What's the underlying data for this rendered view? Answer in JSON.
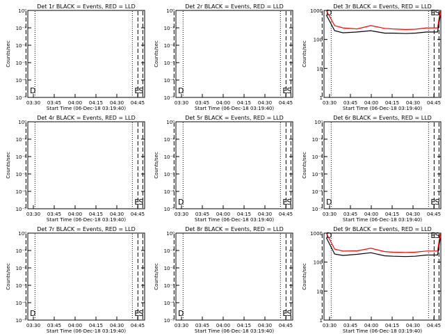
{
  "colors": {
    "events": "#000000",
    "lld": "#ff0000",
    "axis": "#000000"
  },
  "chart_data": [
    {
      "type": "line",
      "title": "Det 1r BLACK = Events, RED = LLD",
      "xlabel": "Start Time (06-Dec-18 03:19:40)",
      "ylabel": "Counts/sec",
      "x_ticks": [
        "03:30",
        "03:45",
        "04:00",
        "04:15",
        "04:30",
        "04:45"
      ],
      "y_scale": "log",
      "y_ticks": [
        "10⁰",
        "10⁻¹",
        "10⁻²",
        "10⁻³",
        "10⁻⁴",
        "10⁻⁵"
      ],
      "ylim": [
        "10⁰",
        "10⁻⁵"
      ],
      "markers": [
        "D",
        "E",
        "S"
      ],
      "series": []
    },
    {
      "type": "line",
      "title": "Det 2r BLACK = Events, RED = LLD",
      "xlabel": "Start Time (06-Dec-18 03:19:40)",
      "ylabel": "Counts/sec",
      "x_ticks": [
        "03:30",
        "03:45",
        "04:00",
        "04:15",
        "04:30",
        "04:45"
      ],
      "y_scale": "log",
      "y_ticks": [
        "10⁰",
        "10⁻¹",
        "10⁻²",
        "10⁻³",
        "10⁻⁴",
        "10⁻⁵"
      ],
      "ylim": [
        "10⁰",
        "10⁻⁵"
      ],
      "markers": [
        "D",
        "E",
        "S"
      ],
      "series": []
    },
    {
      "type": "line",
      "title": "Det 3r BLACK = Events, RED = LLD",
      "xlabel": "Start Time (06-Dec-18 03:19:40)",
      "ylabel": "Counts/sec",
      "x_ticks": [
        "03:30",
        "03:45",
        "04:00",
        "04:15",
        "04:30",
        "04:45"
      ],
      "y_scale": "log",
      "y_ticks": [
        "1000",
        "100",
        "10",
        "1"
      ],
      "ylim": [
        1,
        1000
      ],
      "markers": [
        "D",
        "E",
        "S"
      ],
      "series": [
        {
          "color": "black",
          "x_min": [
            8,
            14,
            20,
            30,
            40,
            50,
            56,
            65,
            72,
            80,
            88,
            90
          ],
          "y": [
            700,
            200,
            170,
            180,
            200,
            165,
            165,
            160,
            165,
            180,
            180,
            700
          ]
        },
        {
          "color": "red",
          "x_min": [
            8,
            14,
            20,
            30,
            40,
            50,
            56,
            65,
            72,
            80,
            88,
            90
          ],
          "y": [
            1000,
            300,
            250,
            230,
            300,
            240,
            230,
            220,
            225,
            250,
            250,
            1000
          ]
        }
      ]
    },
    {
      "type": "line",
      "title": "Det 4r BLACK = Events, RED = LLD",
      "xlabel": "Start Time (06-Dec-18 03:19:40)",
      "ylabel": "Counts/sec",
      "x_ticks": [
        "03:30",
        "03:45",
        "04:00",
        "04:15",
        "04:30",
        "04:45"
      ],
      "y_scale": "log",
      "y_ticks": [
        "10⁰",
        "10⁻¹",
        "10⁻²",
        "10⁻³",
        "10⁻⁴",
        "10⁻⁵"
      ],
      "ylim": [
        "10⁰",
        "10⁻⁵"
      ],
      "markers": [
        "E",
        "S"
      ],
      "series": []
    },
    {
      "type": "line",
      "title": "Det 5r BLACK = Events, RED = LLD",
      "xlabel": "Start Time (06-Dec-18 03:19:40)",
      "ylabel": "Counts/sec",
      "x_ticks": [
        "03:30",
        "03:45",
        "04:00",
        "04:15",
        "04:30",
        "04:45"
      ],
      "y_scale": "log",
      "y_ticks": [
        "10⁰",
        "10⁻¹",
        "10⁻²",
        "10⁻³",
        "10⁻⁴",
        "10⁻⁵"
      ],
      "ylim": [
        "10⁰",
        "10⁻⁵"
      ],
      "markers": [
        "D",
        "E",
        "S"
      ],
      "series": []
    },
    {
      "type": "line",
      "title": "Det 6r BLACK = Events, RED = LLD",
      "xlabel": "Start Time (06-Dec-18 03:19:40)",
      "ylabel": "Counts/sec",
      "x_ticks": [
        "03:30",
        "03:45",
        "04:00",
        "04:15",
        "04:30",
        "04:45"
      ],
      "y_scale": "log",
      "y_ticks": [
        "10⁰",
        "10⁻¹",
        "10⁻²",
        "10⁻³",
        "10⁻⁴",
        "10⁻⁵"
      ],
      "ylim": [
        "10⁰",
        "10⁻⁵"
      ],
      "markers": [
        "D",
        "E",
        "S"
      ],
      "series": []
    },
    {
      "type": "line",
      "title": "Det 7r BLACK = Events, RED = LLD",
      "xlabel": "Start Time (06-Dec-18 03:19:40)",
      "ylabel": "Counts/sec",
      "x_ticks": [
        "03:30",
        "03:45",
        "04:00",
        "04:15",
        "04:30",
        "04:45"
      ],
      "y_scale": "log",
      "y_ticks": [
        "10⁰",
        "10⁻¹",
        "10⁻²",
        "10⁻³",
        "10⁻⁴",
        "10⁻⁵"
      ],
      "ylim": [
        "10⁰",
        "10⁻⁵"
      ],
      "markers": [
        "D",
        "E",
        "S"
      ],
      "series": []
    },
    {
      "type": "line",
      "title": "Det 8r BLACK = Events, RED = LLD",
      "xlabel": "Start Time (06-Dec-18 03:19:40)",
      "ylabel": "Counts/sec",
      "x_ticks": [
        "03:30",
        "03:45",
        "04:00",
        "04:15",
        "04:30",
        "04:45"
      ],
      "y_scale": "log",
      "y_ticks": [
        "10⁰",
        "10⁻¹",
        "10⁻²",
        "10⁻³",
        "10⁻⁴",
        "10⁻⁵"
      ],
      "ylim": [
        "10⁰",
        "10⁻⁵"
      ],
      "markers": [
        "D",
        "E",
        "S"
      ],
      "series": []
    },
    {
      "type": "line",
      "title": "Det 9r BLACK = Events, RED = LLD",
      "xlabel": "Start Time (06-Dec-18 03:19:40)",
      "ylabel": "Counts/sec",
      "x_ticks": [
        "03:30",
        "03:45",
        "04:00",
        "04:15",
        "04:30",
        "04:45"
      ],
      "y_scale": "log",
      "y_ticks": [
        "1000",
        "100",
        "10",
        "1"
      ],
      "ylim": [
        1,
        1000
      ],
      "markers": [
        "D",
        "E",
        "S"
      ],
      "series": [
        {
          "color": "black",
          "x_min": [
            8,
            14,
            20,
            30,
            40,
            50,
            56,
            65,
            72,
            80,
            88,
            90
          ],
          "y": [
            700,
            190,
            170,
            185,
            210,
            165,
            160,
            155,
            160,
            175,
            175,
            700
          ]
        },
        {
          "color": "red",
          "x_min": [
            8,
            14,
            20,
            30,
            40,
            50,
            56,
            65,
            72,
            80,
            88,
            90
          ],
          "y": [
            1000,
            280,
            240,
            245,
            300,
            230,
            220,
            215,
            220,
            240,
            240,
            1000
          ]
        }
      ]
    }
  ]
}
